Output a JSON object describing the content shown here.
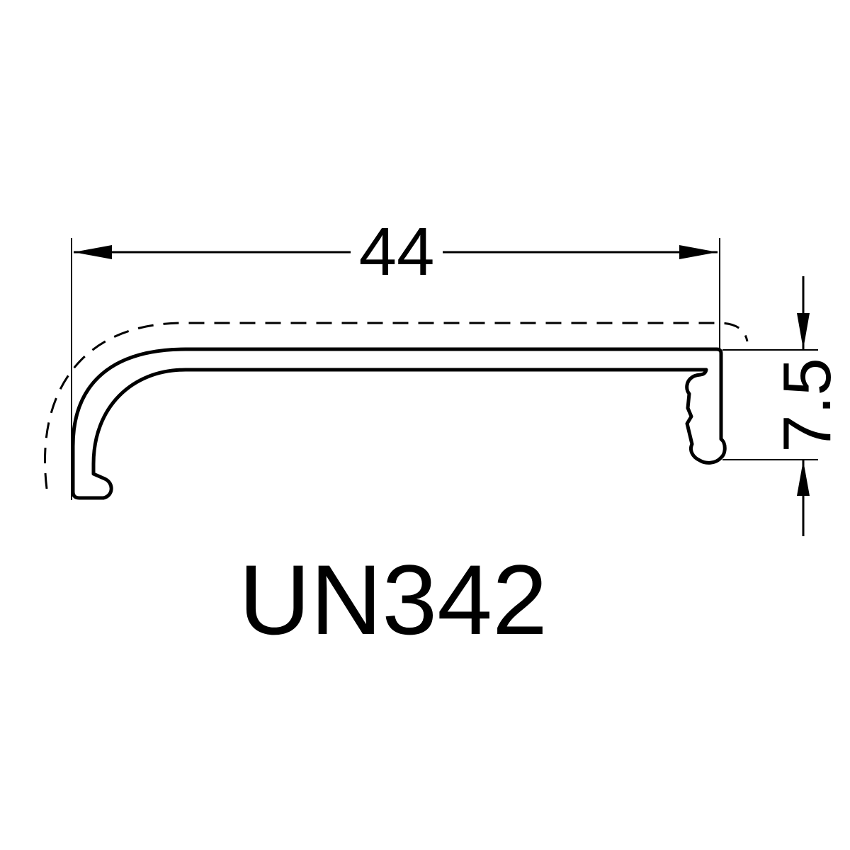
{
  "diagram": {
    "dimensions": {
      "width_value": "44",
      "height_value": "7.5"
    },
    "model_code": "UN342",
    "colors": {
      "line": "#000000",
      "background": "#ffffff"
    }
  }
}
